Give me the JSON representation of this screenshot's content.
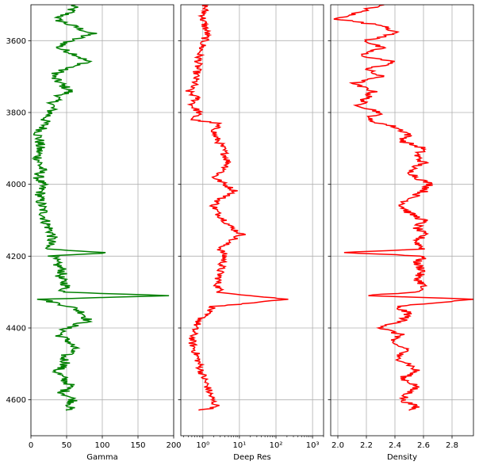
{
  "chart_data": {
    "type": "line",
    "layout": "three side-by-side tracks sharing a depth axis (depth increases downward)",
    "depth_axis": {
      "range": [
        4700,
        3500
      ],
      "ticks": [
        3600,
        3800,
        4000,
        4200,
        4400,
        4600
      ],
      "tick_labels": [
        "3600",
        "3800",
        "4000",
        "4200",
        "4400",
        "4600"
      ]
    },
    "grid": true,
    "tracks": [
      {
        "name": "gamma",
        "xlabel": "Gamma",
        "scale": "linear",
        "xlim": [
          0,
          200
        ],
        "ticks": [
          0,
          50,
          100,
          150,
          200
        ],
        "tick_labels": [
          "0",
          "50",
          "100",
          "150",
          "200"
        ],
        "color": "#008000",
        "series": {
          "depth": [
            3500,
            3520,
            3540,
            3560,
            3580,
            3600,
            3620,
            3640,
            3660,
            3680,
            3700,
            3720,
            3740,
            3760,
            3780,
            3800,
            3820,
            3840,
            3860,
            3880,
            3900,
            3920,
            3940,
            3960,
            3980,
            4000,
            4020,
            4040,
            4060,
            4080,
            4100,
            4120,
            4140,
            4160,
            4180,
            4190,
            4200,
            4220,
            4240,
            4260,
            4280,
            4300,
            4310,
            4320,
            4340,
            4360,
            4380,
            4400,
            4420,
            4440,
            4460,
            4480,
            4500,
            4520,
            4540,
            4560,
            4580,
            4600,
            4620,
            4630
          ],
          "values": [
            60,
            55,
            35,
            60,
            85,
            55,
            38,
            65,
            80,
            45,
            30,
            42,
            55,
            35,
            30,
            28,
            20,
            18,
            10,
            12,
            12,
            10,
            12,
            15,
            10,
            15,
            14,
            12,
            15,
            18,
            20,
            25,
            30,
            28,
            20,
            110,
            30,
            35,
            45,
            40,
            50,
            45,
            200,
            15,
            55,
            75,
            80,
            50,
            40,
            55,
            60,
            45,
            50,
            35,
            45,
            55,
            45,
            60,
            55,
            50
          ]
        }
      },
      {
        "name": "deep-res",
        "xlabel": "Deep Res",
        "scale": "log",
        "xlim": [
          0.25,
          2000
        ],
        "ticks": [
          1,
          10,
          100,
          1000
        ],
        "tick_labels": [
          "10⁰",
          "10¹",
          "10²",
          "10³"
        ],
        "color": "#ff0000",
        "series": {
          "depth": [
            3500,
            3540,
            3580,
            3600,
            3640,
            3680,
            3720,
            3740,
            3760,
            3780,
            3800,
            3820,
            3830,
            3860,
            3900,
            3940,
            3960,
            3980,
            4000,
            4020,
            4040,
            4060,
            4080,
            4100,
            4120,
            4140,
            4160,
            4180,
            4200,
            4240,
            4280,
            4300,
            4310,
            4320,
            4330,
            4340,
            4360,
            4380,
            4400,
            4440,
            4480,
            4520,
            4560,
            4600,
            4620,
            4630
          ],
          "values": [
            1.2,
            1.0,
            1.3,
            1.1,
            0.8,
            0.7,
            0.6,
            0.4,
            0.7,
            0.5,
            0.8,
            0.5,
            2.5,
            2.0,
            3.5,
            5.0,
            4.0,
            2.0,
            4.0,
            8.0,
            3.0,
            2.0,
            2.5,
            4.0,
            6.0,
            12.0,
            5.0,
            3.0,
            4.0,
            3.0,
            2.5,
            3.0,
            20.0,
            200.0,
            25.0,
            2.0,
            1.2,
            0.8,
            0.6,
            0.5,
            0.7,
            0.9,
            1.3,
            1.8,
            2.5,
            0.8
          ]
        }
      },
      {
        "name": "density",
        "xlabel": "Density",
        "scale": "linear",
        "xlim": [
          1.95,
          2.95
        ],
        "ticks": [
          2.0,
          2.2,
          2.4,
          2.6,
          2.8
        ],
        "tick_labels": [
          "2.0",
          "2.2",
          "2.4",
          "2.6",
          "2.8"
        ],
        "color": "#ff0000",
        "series": {
          "depth": [
            3500,
            3540,
            3560,
            3580,
            3600,
            3620,
            3640,
            3660,
            3680,
            3700,
            3720,
            3740,
            3760,
            3780,
            3800,
            3820,
            3840,
            3860,
            3880,
            3900,
            3920,
            3940,
            3960,
            3980,
            4000,
            4020,
            4040,
            4060,
            4080,
            4100,
            4120,
            4140,
            4160,
            4180,
            4190,
            4200,
            4220,
            4240,
            4260,
            4280,
            4300,
            4310,
            4320,
            4340,
            4360,
            4380,
            4400,
            4420,
            4440,
            4460,
            4480,
            4500,
            4520,
            4540,
            4560,
            4580,
            4600,
            4620,
            4630
          ],
          "values": [
            2.3,
            2.0,
            2.35,
            2.4,
            2.2,
            2.3,
            2.15,
            2.4,
            2.2,
            2.3,
            2.1,
            2.25,
            2.2,
            2.15,
            2.3,
            2.2,
            2.4,
            2.5,
            2.45,
            2.6,
            2.55,
            2.6,
            2.5,
            2.55,
            2.65,
            2.6,
            2.5,
            2.45,
            2.5,
            2.6,
            2.55,
            2.6,
            2.55,
            2.6,
            2.05,
            2.6,
            2.55,
            2.6,
            2.55,
            2.6,
            2.55,
            2.2,
            2.95,
            2.4,
            2.5,
            2.45,
            2.3,
            2.45,
            2.35,
            2.5,
            2.4,
            2.5,
            2.55,
            2.45,
            2.55,
            2.5,
            2.45,
            2.55,
            2.5
          ]
        }
      }
    ]
  }
}
